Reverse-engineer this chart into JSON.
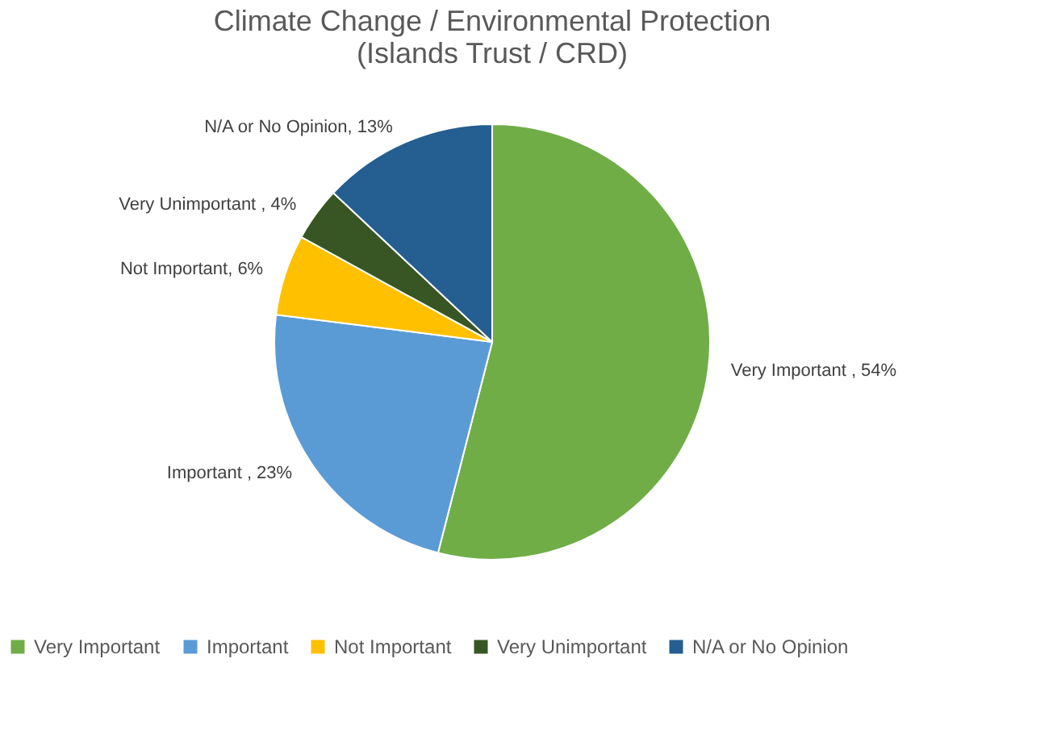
{
  "chart_data": {
    "type": "pie",
    "title": [
      "Climate Change / Environmental Protection",
      "(Islands Trust / CRD)"
    ],
    "categories": [
      "Very Important",
      "Important",
      "Not Important",
      "Very Unimportant",
      "N/A or No Opinion"
    ],
    "values": [
      54,
      23,
      6,
      4,
      13
    ],
    "colors": [
      "#70ad47",
      "#5b9bd5",
      "#ffc000",
      "#375623",
      "#255e91"
    ],
    "value_labels": [
      "Very Important , 54%",
      "Important , 23%",
      "Not Important, 6%",
      "Very Unimportant , 4%",
      "N/A or No Opinion, 13%"
    ],
    "legend": "bottom"
  }
}
